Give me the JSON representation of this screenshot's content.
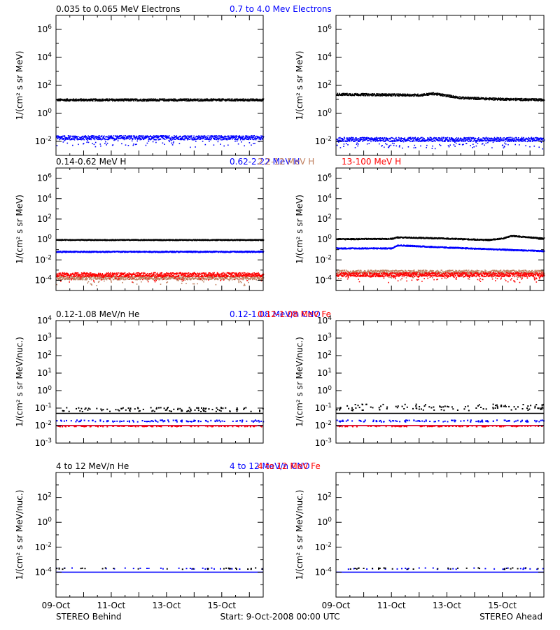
{
  "figure": {
    "footer_left": "STEREO Behind",
    "footer_center": "Start:  9-Oct-2008 00:00 UTC",
    "footer_right": "STEREO Ahead",
    "x_ticks": [
      "09-Oct",
      "11-Oct",
      "13-Oct",
      "15-Oct"
    ]
  },
  "colors": {
    "black": "#000000",
    "blue": "#0000ff",
    "tan": "#c08060",
    "red": "#ff0000"
  },
  "chart_data": [
    {
      "type": "scatter",
      "panel": "electrons-behind",
      "titles": [
        {
          "text": "0.035 to 0.065 MeV Electrons",
          "color": "#000000"
        },
        {
          "text": "0.7 to 4.0 Mev Electrons",
          "color": "#0000ff"
        }
      ],
      "ylabel": "1/(cm² s sr MeV)",
      "yscale": "log",
      "ylim": [
        0.001,
        10000000
      ],
      "ytick_exps": [
        -2,
        0,
        2,
        4,
        6
      ],
      "xlim_days": [
        0,
        7.5
      ],
      "series": [
        {
          "color": "#000000",
          "level": 10,
          "spread": 0.08,
          "lowfrac": 0.0
        },
        {
          "color": "#0000ff",
          "level": 0.02,
          "spread": 0.15,
          "lowfrac": 0.1
        }
      ]
    },
    {
      "type": "scatter",
      "panel": "electrons-ahead",
      "titles": [],
      "ylabel": "1/(cm² s sr MeV)",
      "yscale": "log",
      "ylim": [
        0.001,
        10000000
      ],
      "ytick_exps": [
        -2,
        0,
        2,
        4,
        6
      ],
      "xlim_days": [
        0,
        7.5
      ],
      "series": [
        {
          "color": "#000000",
          "profile": [
            [
              0,
              25
            ],
            [
              3.0,
              22
            ],
            [
              3.5,
              28
            ],
            [
              4.0,
              20
            ],
            [
              4.5,
              14
            ],
            [
              5.5,
              12
            ],
            [
              7.5,
              10
            ]
          ],
          "spread": 0.08,
          "lowfrac": 0.0
        },
        {
          "color": "#0000ff",
          "level": 0.015,
          "spread": 0.15,
          "lowfrac": 0.1
        }
      ]
    },
    {
      "type": "scatter",
      "panel": "protons-behind",
      "titles": [
        {
          "text": "0.14-0.62 MeV H",
          "color": "#000000"
        },
        {
          "text": "0.62-2.22 MeV H",
          "color": "#0000ff"
        },
        {
          "text": "2.2-12 MeV H",
          "color": "#c08060"
        },
        {
          "text": "13-100 MeV H",
          "color": "#ff0000"
        }
      ],
      "ylabel": "1/(cm² s sr MeV)",
      "yscale": "log",
      "ylim": [
        1e-05,
        10000000
      ],
      "ytick_exps": [
        -4,
        -2,
        0,
        2,
        4,
        6
      ],
      "xlim_days": [
        0,
        7.5
      ],
      "series": [
        {
          "color": "#000000",
          "level": 1.0,
          "spread": 0.05,
          "lowfrac": 0.0
        },
        {
          "color": "#0000ff",
          "level": 0.07,
          "spread": 0.06,
          "lowfrac": 0.0
        },
        {
          "color": "#c08060",
          "level": 0.0002,
          "spread": 0.2,
          "lowfrac": 0.05
        },
        {
          "color": "#ff0000",
          "level": 0.0004,
          "spread": 0.2,
          "lowfrac": 0.08
        }
      ]
    },
    {
      "type": "scatter",
      "panel": "protons-ahead",
      "titles": [],
      "ylabel": "1/(cm² s sr MeV)",
      "yscale": "log",
      "ylim": [
        1e-05,
        10000000
      ],
      "ytick_exps": [
        -4,
        -2,
        0,
        2,
        4,
        6
      ],
      "xlim_days": [
        0,
        7.5
      ],
      "series": [
        {
          "color": "#000000",
          "profile": [
            [
              0,
              1.2
            ],
            [
              2.0,
              1.3
            ],
            [
              2.2,
              1.8
            ],
            [
              3.5,
              1.5
            ],
            [
              5.5,
              1.0
            ],
            [
              6.0,
              1.4
            ],
            [
              6.3,
              2.5
            ],
            [
              7.5,
              1.4
            ]
          ],
          "spread": 0.06,
          "lowfrac": 0.0
        },
        {
          "color": "#0000ff",
          "profile": [
            [
              0,
              0.15
            ],
            [
              2.0,
              0.15
            ],
            [
              2.2,
              0.3
            ],
            [
              4.0,
              0.18
            ],
            [
              7.5,
              0.08
            ]
          ],
          "spread": 0.06,
          "lowfrac": 0.0
        },
        {
          "color": "#c08060",
          "level": 0.0007,
          "spread": 0.2,
          "lowfrac": 0.05
        },
        {
          "color": "#ff0000",
          "level": 0.0004,
          "spread": 0.2,
          "lowfrac": 0.08
        }
      ]
    },
    {
      "type": "scatter",
      "panel": "lowE-heavy-behind",
      "titles": [
        {
          "text": "0.12-1.08 MeV/n He",
          "color": "#000000"
        },
        {
          "text": "0.12-1.08 MeV/n CNO",
          "color": "#0000ff"
        },
        {
          "text": "0.12-1.08 MeV Fe",
          "color": "#ff0000"
        }
      ],
      "ylabel": "1/(cm² s sr MeV/nuc.)",
      "yscale": "log",
      "ylim": [
        0.001,
        10000
      ],
      "ytick_exps": [
        -3,
        -2,
        -1,
        0,
        1,
        2,
        3,
        4
      ],
      "xlim_days": [
        0,
        7.5
      ],
      "series": [
        {
          "color": "#000000",
          "baseline": 0.05,
          "scatter_level": 0.09,
          "spread": 0.12
        },
        {
          "color": "#0000ff",
          "baseline": 0.01,
          "scatter_level": 0.02,
          "spread": 0.05
        },
        {
          "color": "#ff0000",
          "baseline": 0.01,
          "scatter_level": 0.01,
          "spread": 0.02
        }
      ]
    },
    {
      "type": "scatter",
      "panel": "lowE-heavy-ahead",
      "titles": [],
      "ylabel": "1/(cm² s sr MeV/nuc.)",
      "yscale": "log",
      "ylim": [
        0.001,
        10000
      ],
      "ytick_exps": [
        -3,
        -2,
        -1,
        0,
        1,
        2,
        3,
        4
      ],
      "xlim_days": [
        0,
        7.5
      ],
      "series": [
        {
          "color": "#000000",
          "baseline": 0.05,
          "scatter_level": 0.12,
          "spread": 0.18
        },
        {
          "color": "#0000ff",
          "baseline": 0.01,
          "scatter_level": 0.02,
          "spread": 0.05
        },
        {
          "color": "#ff0000",
          "baseline": 0.01,
          "scatter_level": 0.01,
          "spread": 0.02
        }
      ]
    },
    {
      "type": "scatter",
      "panel": "highE-heavy-behind",
      "titles": [
        {
          "text": "4 to 12 MeV/n He",
          "color": "#000000"
        },
        {
          "text": "4 to 12 MeV/n CNO",
          "color": "#0000ff"
        },
        {
          "text": "4 to 12 MeV Fe",
          "color": "#ff0000"
        }
      ],
      "ylabel": "1/(cm² s sr MeV/nuc.)",
      "yscale": "log",
      "ylim": [
        1e-06,
        10000
      ],
      "ytick_exps": [
        -4,
        -2,
        0,
        2
      ],
      "xlim_days": [
        0,
        7.5
      ],
      "series": [
        {
          "color": "#0000ff",
          "baseline": 0.0001,
          "scatter_level": 0.00022,
          "spread": 0.05,
          "sparse": true
        },
        {
          "color": "#000000",
          "baseline": null,
          "scatter_level": 0.00022,
          "spread": 0.05,
          "sparse": true
        }
      ]
    },
    {
      "type": "scatter",
      "panel": "highE-heavy-ahead",
      "titles": [],
      "ylabel": "1/(cm² s sr MeV/nuc.)",
      "yscale": "log",
      "ylim": [
        1e-06,
        10000
      ],
      "ytick_exps": [
        -4,
        -2,
        0,
        2
      ],
      "xlim_days": [
        0,
        7.5
      ],
      "series": [
        {
          "color": "#0000ff",
          "baseline": 0.0001,
          "scatter_level": 0.00022,
          "spread": 0.05,
          "sparse": true
        },
        {
          "color": "#000000",
          "baseline": null,
          "scatter_level": 0.00022,
          "spread": 0.05,
          "sparse": true
        }
      ]
    }
  ]
}
